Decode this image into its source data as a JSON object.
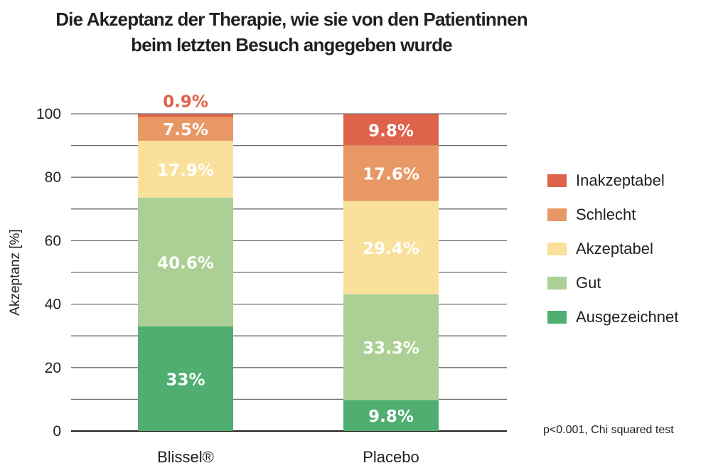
{
  "chart_data": {
    "type": "bar",
    "stacked": true,
    "title_lines": [
      "Die Akzeptanz der Therapie, wie sie von den Patientinnen",
      "beim letzten Besuch angegeben wurde"
    ],
    "xlabel": "",
    "ylabel": "Akzeptanz [%]",
    "ylim": [
      0,
      100
    ],
    "yticks": [
      0,
      20,
      40,
      60,
      80,
      100
    ],
    "gridlines_every": 10,
    "grid": true,
    "categories": [
      "Blissel®",
      "Placebo"
    ],
    "series": [
      {
        "name": "Ausgezeichnet",
        "color": "#50ae70",
        "values": [
          33.0,
          9.8
        ],
        "labels": [
          "33%",
          "9.8%"
        ]
      },
      {
        "name": "Gut",
        "color": "#abcf94",
        "values": [
          40.6,
          33.3
        ],
        "labels": [
          "40.6%",
          "33.3%"
        ]
      },
      {
        "name": "Akzeptabel",
        "color": "#fae19b",
        "values": [
          17.9,
          29.4
        ],
        "labels": [
          "17.9%",
          "29.4%"
        ]
      },
      {
        "name": "Schlecht",
        "color": "#e79865",
        "values": [
          7.5,
          17.6
        ],
        "labels": [
          "7.5%",
          "17.6%"
        ]
      },
      {
        "name": "Inakzeptabel",
        "color": "#de634a",
        "values": [
          0.9,
          9.8
        ],
        "labels": [
          "0.9%",
          "9.8%"
        ]
      }
    ],
    "legend_order": [
      "Inakzeptabel",
      "Schlecht",
      "Akzeptabel",
      "Gut",
      "Ausgezeichnet"
    ],
    "legend_position": "right",
    "annotation": "p<0.001, Chi squared test",
    "label_text_color": "#ffffff",
    "outside_label_color": "#de634a"
  }
}
